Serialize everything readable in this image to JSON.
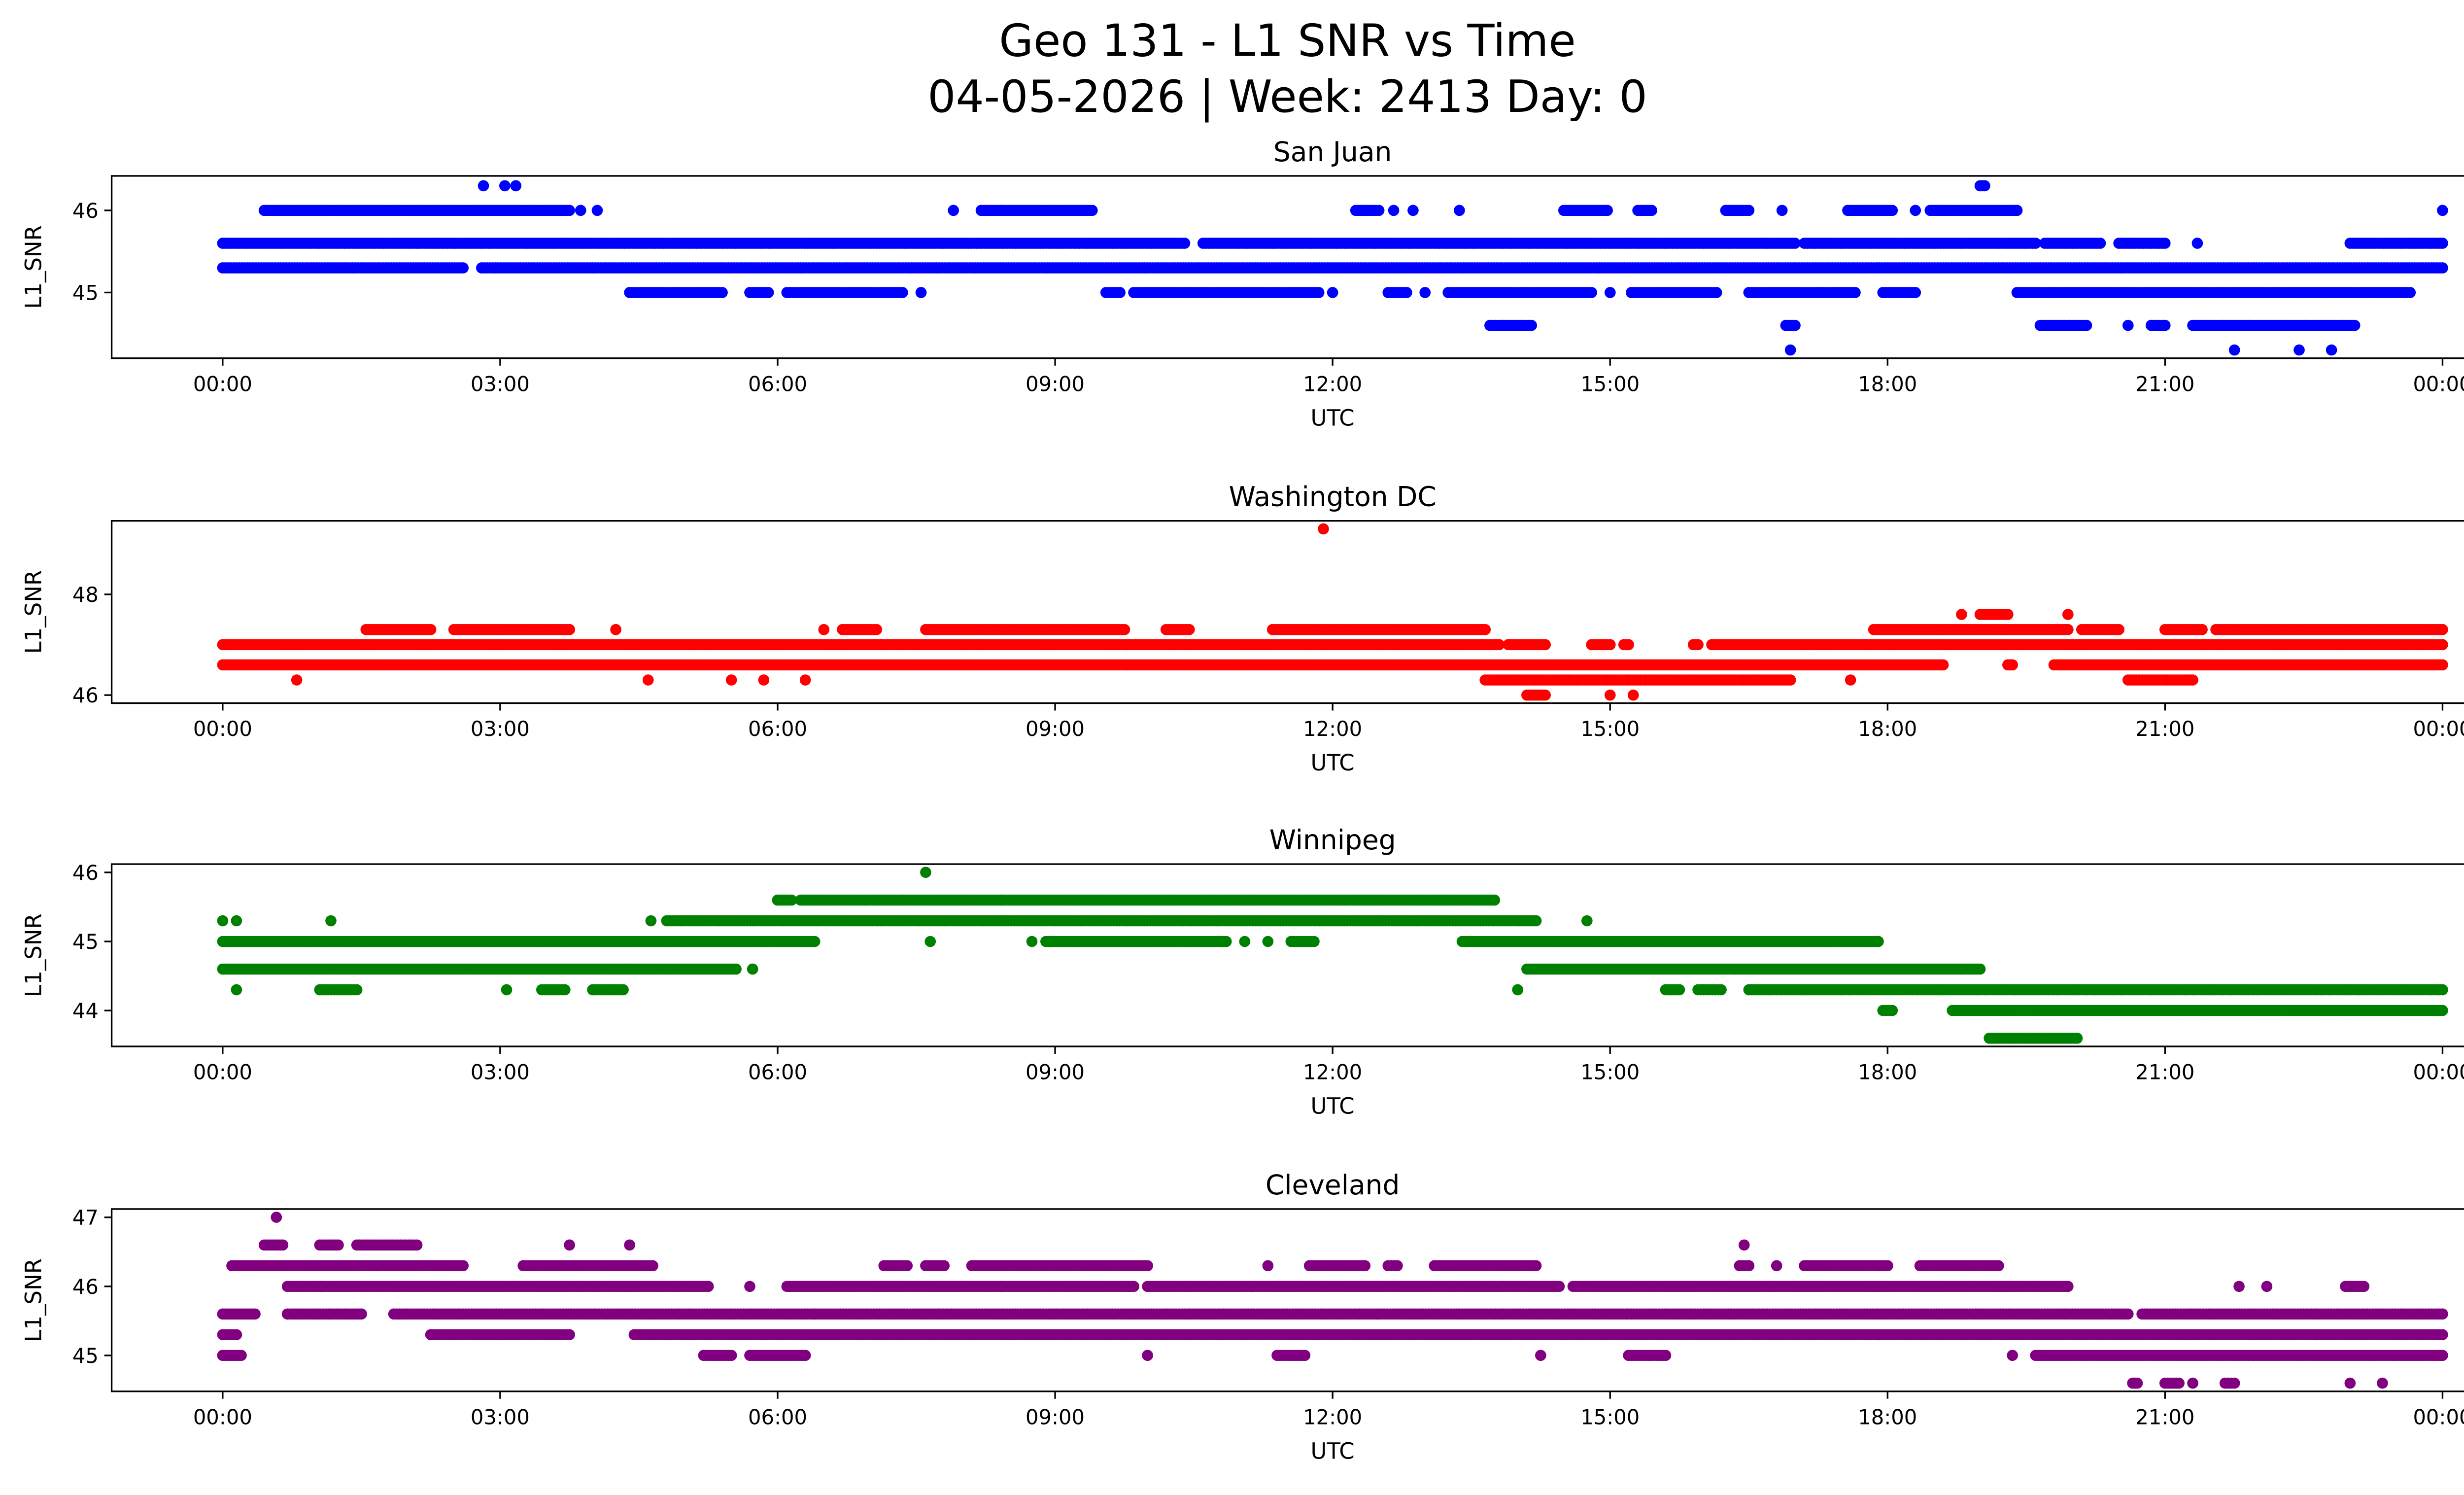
{
  "title_line1": "Geo 131 - L1 SNR vs Time",
  "title_line2": "04-05-2026 | Week: 2413 Day: 0",
  "chart_data": [
    {
      "type": "scatter",
      "title": "San Juan",
      "xlabel": "UTC",
      "ylabel": "L1_SNR",
      "color": "#0000ff",
      "xlim": [
        -1.2,
        25.2
      ],
      "ylim": [
        44.2,
        46.42
      ],
      "xticks": [
        0,
        3,
        6,
        9,
        12,
        15,
        18,
        21,
        24
      ],
      "xtick_labels": [
        "00:00",
        "03:00",
        "06:00",
        "09:00",
        "12:00",
        "15:00",
        "18:00",
        "21:00",
        "00:00"
      ],
      "yticks": [
        45,
        46
      ],
      "runs": [
        {
          "y": 45.3,
          "x": [
            [
              0,
              2.6
            ],
            [
              2.8,
              24
            ]
          ]
        },
        {
          "y": 45.6,
          "x": [
            [
              0,
              10.4
            ],
            [
              10.6,
              17
            ],
            [
              17.1,
              19.6
            ],
            [
              19.7,
              20.3
            ],
            [
              20.5,
              21.0
            ],
            [
              21.35,
              21.35
            ],
            [
              23.0,
              24
            ]
          ]
        },
        {
          "y": 46.0,
          "x": [
            [
              0.45,
              3.75
            ],
            [
              3.87,
              3.87
            ],
            [
              4.05,
              4.05
            ],
            [
              7.9,
              7.9
            ],
            [
              8.2,
              9.4
            ],
            [
              12.25,
              12.5
            ],
            [
              12.66,
              12.66
            ],
            [
              12.87,
              12.87
            ],
            [
              13.37,
              13.37
            ],
            [
              14.5,
              14.97
            ],
            [
              15.3,
              15.45
            ],
            [
              16.25,
              16.5
            ],
            [
              16.86,
              16.86
            ],
            [
              17.57,
              18.05
            ],
            [
              18.3,
              18.3
            ],
            [
              18.46,
              19.4
            ],
            [
              24,
              24
            ]
          ]
        },
        {
          "y": 46.3,
          "x": [
            [
              2.82,
              2.82
            ],
            [
              3.05,
              3.05
            ],
            [
              3.17,
              3.17
            ],
            [
              19.0,
              19.05
            ]
          ]
        },
        {
          "y": 45.0,
          "x": [
            [
              4.4,
              5.4
            ],
            [
              5.7,
              5.9
            ],
            [
              6.1,
              7.35
            ],
            [
              7.55,
              7.55
            ],
            [
              9.55,
              9.7
            ],
            [
              9.85,
              11.85
            ],
            [
              12.0,
              12.0
            ],
            [
              12.6,
              12.8
            ],
            [
              13.0,
              13.0
            ],
            [
              13.25,
              14.8
            ],
            [
              15.0,
              15.0
            ],
            [
              15.23,
              16.15
            ],
            [
              16.5,
              17.65
            ],
            [
              17.95,
              18.3
            ],
            [
              19.4,
              23.65
            ]
          ]
        },
        {
          "y": 44.6,
          "x": [
            [
              13.7,
              14.15
            ],
            [
              16.9,
              17.0
            ],
            [
              19.65,
              20.15
            ],
            [
              20.6,
              20.6
            ],
            [
              20.85,
              21.0
            ],
            [
              21.3,
              23.05
            ]
          ]
        },
        {
          "y": 44.3,
          "x": [
            [
              16.95,
              16.95
            ],
            [
              21.75,
              21.75
            ],
            [
              22.45,
              22.45
            ],
            [
              22.8,
              22.8
            ]
          ]
        }
      ]
    },
    {
      "type": "scatter",
      "title": "Washington DC",
      "xlabel": "UTC",
      "ylabel": "L1_SNR",
      "color": "#ff0000",
      "xlim": [
        -1.2,
        25.2
      ],
      "ylim": [
        45.84,
        49.46
      ],
      "xticks": [
        0,
        3,
        6,
        9,
        12,
        15,
        18,
        21,
        24
      ],
      "xtick_labels": [
        "00:00",
        "03:00",
        "06:00",
        "09:00",
        "12:00",
        "15:00",
        "18:00",
        "21:00",
        "00:00"
      ],
      "yticks": [
        46,
        48
      ],
      "runs": [
        {
          "y": 47.0,
          "x": [
            [
              0,
              13.8
            ],
            [
              13.9,
              14.3
            ],
            [
              14.8,
              15.0
            ],
            [
              15.15,
              15.2
            ],
            [
              15.9,
              15.95
            ],
            [
              16.1,
              24
            ]
          ]
        },
        {
          "y": 46.6,
          "x": [
            [
              0,
              18.6
            ],
            [
              19.3,
              19.35
            ],
            [
              19.8,
              24
            ]
          ]
        },
        {
          "y": 46.3,
          "x": [
            [
              0.8,
              0.8
            ],
            [
              4.6,
              4.6
            ],
            [
              5.5,
              5.5
            ],
            [
              5.85,
              5.85
            ],
            [
              6.3,
              6.3
            ],
            [
              13.65,
              16.95
            ],
            [
              17.6,
              17.6
            ],
            [
              20.6,
              21.3
            ]
          ]
        },
        {
          "y": 46.0,
          "x": [
            [
              14.1,
              14.3
            ],
            [
              15.0,
              15.0
            ],
            [
              15.25,
              15.25
            ]
          ]
        },
        {
          "y": 47.3,
          "x": [
            [
              1.55,
              2.25
            ],
            [
              2.5,
              3.75
            ],
            [
              4.25,
              4.25
            ],
            [
              6.5,
              6.5
            ],
            [
              6.7,
              7.07
            ],
            [
              7.6,
              9.75
            ],
            [
              10.2,
              10.45
            ],
            [
              11.35,
              13.65
            ],
            [
              17.85,
              19.95
            ],
            [
              20.1,
              20.5
            ],
            [
              21.0,
              21.4
            ],
            [
              21.55,
              24
            ]
          ]
        },
        {
          "y": 47.6,
          "x": [
            [
              18.8,
              18.8
            ],
            [
              19.0,
              19.3
            ],
            [
              19.95,
              19.95
            ]
          ]
        },
        {
          "y": 49.3,
          "x": [
            [
              11.9,
              11.9
            ]
          ]
        }
      ]
    },
    {
      "type": "scatter",
      "title": "Winnipeg",
      "xlabel": "UTC",
      "ylabel": "L1_SNR",
      "color": "#008000",
      "xlim": [
        -1.2,
        25.2
      ],
      "ylim": [
        43.48,
        46.12
      ],
      "xticks": [
        0,
        3,
        6,
        9,
        12,
        15,
        18,
        21,
        24
      ],
      "xtick_labels": [
        "00:00",
        "03:00",
        "06:00",
        "09:00",
        "12:00",
        "15:00",
        "18:00",
        "21:00",
        "00:00"
      ],
      "yticks": [
        44,
        45,
        46
      ],
      "runs": [
        {
          "y": 45.0,
          "x": [
            [
              0,
              6.4
            ],
            [
              7.65,
              7.65
            ],
            [
              8.75,
              8.75
            ],
            [
              8.9,
              10.85
            ],
            [
              11.05,
              11.05
            ],
            [
              11.3,
              11.3
            ],
            [
              11.55,
              11.8
            ],
            [
              13.4,
              17.9
            ]
          ]
        },
        {
          "y": 45.3,
          "x": [
            [
              0,
              0
            ],
            [
              0.15,
              0.15
            ],
            [
              1.17,
              1.17
            ],
            [
              4.63,
              4.63
            ],
            [
              4.8,
              14.2
            ],
            [
              14.75,
              14.75
            ]
          ]
        },
        {
          "y": 44.6,
          "x": [
            [
              0,
              5.55
            ],
            [
              5.73,
              5.73
            ],
            [
              14.1,
              19.0
            ]
          ]
        },
        {
          "y": 44.3,
          "x": [
            [
              0.15,
              0.15
            ],
            [
              1.05,
              1.45
            ],
            [
              3.07,
              3.07
            ],
            [
              3.45,
              3.7
            ],
            [
              4.0,
              4.33
            ],
            [
              14.0,
              14.0
            ],
            [
              15.6,
              15.75
            ],
            [
              15.95,
              16.2
            ],
            [
              16.5,
              24
            ]
          ]
        },
        {
          "y": 45.6,
          "x": [
            [
              6.0,
              6.15
            ],
            [
              6.25,
              13.75
            ]
          ]
        },
        {
          "y": 46.0,
          "x": [
            [
              7.6,
              7.6
            ]
          ]
        },
        {
          "y": 44.0,
          "x": [
            [
              17.95,
              18.05
            ],
            [
              18.7,
              24
            ]
          ]
        },
        {
          "y": 43.6,
          "x": [
            [
              19.1,
              20.05
            ]
          ]
        }
      ]
    },
    {
      "type": "scatter",
      "title": "Cleveland",
      "xlabel": "UTC",
      "ylabel": "L1_SNR",
      "color": "#800080",
      "xlim": [
        -1.2,
        25.2
      ],
      "ylim": [
        44.48,
        47.12
      ],
      "xticks": [
        0,
        3,
        6,
        9,
        12,
        15,
        18,
        21,
        24
      ],
      "xtick_labels": [
        "00:00",
        "03:00",
        "06:00",
        "09:00",
        "12:00",
        "15:00",
        "18:00",
        "21:00",
        "00:00"
      ],
      "yticks": [
        45,
        46,
        47
      ],
      "runs": [
        {
          "y": 45.6,
          "x": [
            [
              0,
              0.35
            ],
            [
              0.7,
              1.5
            ],
            [
              1.85,
              20.6
            ],
            [
              20.75,
              24
            ]
          ]
        },
        {
          "y": 45.3,
          "x": [
            [
              0,
              0.15
            ],
            [
              2.25,
              3.75
            ],
            [
              4.45,
              24
            ]
          ]
        },
        {
          "y": 45.0,
          "x": [
            [
              0,
              0.2
            ],
            [
              5.2,
              5.5
            ],
            [
              5.7,
              6.3
            ],
            [
              10.0,
              10.0
            ],
            [
              11.4,
              11.7
            ],
            [
              14.25,
              14.25
            ],
            [
              15.2,
              15.6
            ],
            [
              19.35,
              19.35
            ],
            [
              19.6,
              24
            ]
          ]
        },
        {
          "y": 46.0,
          "x": [
            [
              0.7,
              5.25
            ],
            [
              5.7,
              5.7
            ],
            [
              6.1,
              9.85
            ],
            [
              10.0,
              14.45
            ],
            [
              14.6,
              19.95
            ],
            [
              21.8,
              21.8
            ],
            [
              22.1,
              22.1
            ],
            [
              22.95,
              23.15
            ]
          ]
        },
        {
          "y": 46.3,
          "x": [
            [
              0.1,
              2.6
            ],
            [
              3.25,
              4.65
            ],
            [
              7.15,
              7.4
            ],
            [
              7.6,
              7.8
            ],
            [
              8.1,
              10.0
            ],
            [
              11.3,
              11.3
            ],
            [
              11.75,
              12.35
            ],
            [
              12.6,
              12.7
            ],
            [
              13.1,
              14.2
            ],
            [
              16.4,
              16.5
            ],
            [
              16.8,
              16.8
            ],
            [
              17.1,
              18.0
            ],
            [
              18.35,
              19.2
            ]
          ]
        },
        {
          "y": 46.6,
          "x": [
            [
              0.45,
              0.65
            ],
            [
              1.05,
              1.25
            ],
            [
              1.45,
              2.1
            ],
            [
              3.75,
              3.75
            ],
            [
              4.4,
              4.4
            ],
            [
              16.45,
              16.45
            ]
          ]
        },
        {
          "y": 47.0,
          "x": [
            [
              0.58,
              0.58
            ]
          ]
        },
        {
          "y": 44.6,
          "x": [
            [
              20.65,
              20.7
            ],
            [
              21.0,
              21.15
            ],
            [
              21.3,
              21.3
            ],
            [
              21.65,
              21.75
            ],
            [
              23.0,
              23.0
            ],
            [
              23.35,
              23.35
            ]
          ]
        }
      ]
    }
  ]
}
